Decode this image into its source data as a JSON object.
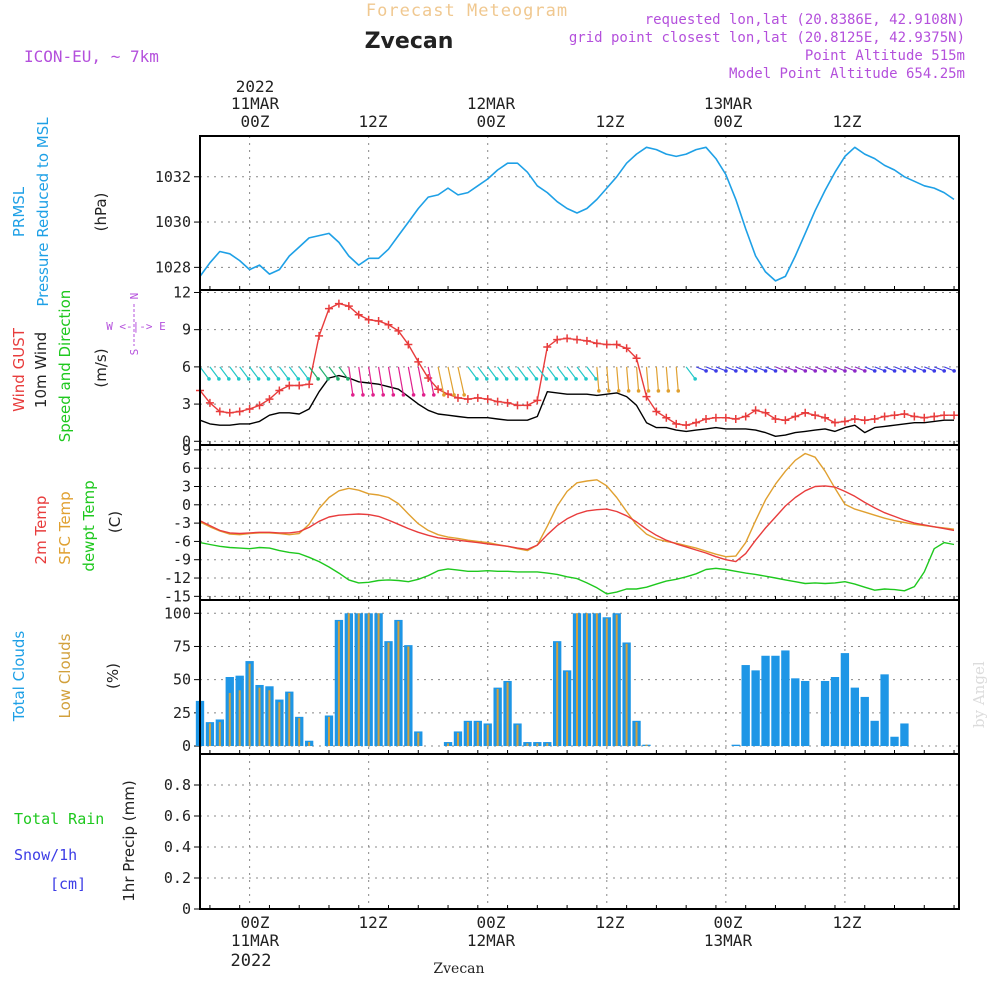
{
  "header": {
    "app_title": "Forecast Meteogram",
    "location": "Zvecan",
    "model": "ICON-EU, ~ 7km",
    "requested": "requested lon,lat (20.8386E, 42.9108N)",
    "grid_point": "grid point closest lon,lat (20.8125E, 42.9375N)",
    "point_altitude": "Point Altitude 515m",
    "model_altitude": "Model Point Altitude 654.25m",
    "watermark": "by Angel",
    "footer_location": "Zvecan"
  },
  "time_axis": {
    "top_year": "2022",
    "top_dates": [
      "11MAR",
      "12MAR",
      "13MAR"
    ],
    "hour_labels": [
      "00Z",
      "12Z",
      "00Z",
      "12Z",
      "00Z",
      "12Z"
    ],
    "bottom_dates": [
      "11MAR",
      "12MAR",
      "13MAR"
    ],
    "bottom_year": "2022"
  },
  "colors": {
    "pressure": "#1ea0e6",
    "gust": "#e83c3c",
    "wind": "#000000",
    "temp": "#e83c3c",
    "sfc": "#e0a030",
    "dewpt": "#1ec81e",
    "total_clouds": "#1e96e6",
    "low_clouds": "#d2a03c",
    "rain": "#1ec81e",
    "snow": "#3c3ce6",
    "header_purple": "#b450dc"
  },
  "chart_data": [
    {
      "type": "line",
      "panel": "pressure",
      "label_lines": [
        "PRMSL",
        "Pressure Reduced to MSL"
      ],
      "unit": "(hPa)",
      "ylim": [
        1027,
        1033.8
      ],
      "yticks": [
        1028,
        1030,
        1032
      ],
      "grid": true,
      "x_hours": [
        -5,
        -4,
        -3,
        -2,
        -1,
        0,
        1,
        2,
        3,
        4,
        5,
        6,
        7,
        8,
        9,
        10,
        11,
        12,
        13,
        14,
        15,
        16,
        17,
        18,
        19,
        20,
        21,
        22,
        23,
        24,
        25,
        26,
        27,
        28,
        29,
        30,
        31,
        32,
        33,
        34,
        35,
        36,
        37,
        38,
        39,
        40,
        41,
        42,
        43,
        44,
        45,
        46,
        47,
        48,
        49,
        50,
        51,
        52,
        53,
        54,
        55,
        56,
        57,
        58,
        59,
        60,
        61,
        62,
        63,
        64,
        65,
        66,
        67,
        68,
        69,
        70,
        71
      ],
      "series": [
        {
          "name": "PRMSL",
          "values": [
            1027.6,
            1028.2,
            1028.7,
            1028.6,
            1028.3,
            1027.9,
            1028.1,
            1027.7,
            1027.9,
            1028.5,
            1028.9,
            1029.3,
            1029.4,
            1029.5,
            1029.1,
            1028.5,
            1028.1,
            1028.4,
            1028.4,
            1028.8,
            1029.4,
            1030.0,
            1030.6,
            1031.1,
            1031.2,
            1031.5,
            1031.2,
            1031.3,
            1031.6,
            1031.9,
            1032.3,
            1032.6,
            1032.6,
            1032.2,
            1031.6,
            1031.3,
            1030.9,
            1030.6,
            1030.4,
            1030.6,
            1031.0,
            1031.5,
            1032.0,
            1032.6,
            1033.0,
            1033.3,
            1033.2,
            1033.0,
            1032.9,
            1033.0,
            1033.2,
            1033.3,
            1032.8,
            1032.1,
            1031.0,
            1029.7,
            1028.5,
            1027.8,
            1027.4,
            1027.6,
            1028.5,
            1029.5,
            1030.5,
            1031.4,
            1032.2,
            1032.9,
            1033.3,
            1033.0,
            1032.8,
            1032.5,
            1032.3,
            1032.0,
            1031.8,
            1031.6,
            1031.5,
            1031.3,
            1031.0
          ]
        }
      ]
    },
    {
      "type": "line",
      "panel": "wind",
      "label_lines": [
        "Wind GUST",
        "10m Wind",
        "Speed and Direction"
      ],
      "unit": "(m/s)",
      "compass": [
        "N",
        "W <-|-> E",
        "S"
      ],
      "ylim": [
        -0.3,
        12.2
      ],
      "yticks": [
        0,
        3,
        6,
        9,
        12
      ],
      "grid": true,
      "x_hours": [
        -5,
        -4,
        -3,
        -2,
        -1,
        0,
        1,
        2,
        3,
        4,
        5,
        6,
        7,
        8,
        9,
        10,
        11,
        12,
        13,
        14,
        15,
        16,
        17,
        18,
        19,
        20,
        21,
        22,
        23,
        24,
        25,
        26,
        27,
        28,
        29,
        30,
        31,
        32,
        33,
        34,
        35,
        36,
        37,
        38,
        39,
        40,
        41,
        42,
        43,
        44,
        45,
        46,
        47,
        48,
        49,
        50,
        51,
        52,
        53,
        54,
        55,
        56,
        57,
        58,
        59,
        60,
        61,
        62,
        63,
        64,
        65,
        66,
        67,
        68,
        69,
        70,
        71
      ],
      "series": [
        {
          "name": "Wind GUST",
          "values": [
            4.1,
            3.1,
            2.4,
            2.3,
            2.4,
            2.6,
            2.9,
            3.4,
            4.1,
            4.5,
            4.5,
            4.6,
            8.5,
            10.7,
            11.1,
            10.9,
            10.2,
            9.8,
            9.7,
            9.4,
            8.9,
            7.8,
            6.4,
            5.1,
            4.2,
            3.8,
            3.5,
            3.4,
            3.5,
            3.4,
            3.2,
            3.1,
            2.9,
            2.9,
            3.3,
            7.6,
            8.2,
            8.3,
            8.2,
            8.1,
            7.9,
            7.8,
            7.8,
            7.5,
            6.7,
            3.6,
            2.4,
            1.9,
            1.4,
            1.3,
            1.5,
            1.8,
            1.9,
            1.9,
            1.8,
            2.0,
            2.5,
            2.3,
            1.8,
            1.7,
            2.0,
            2.3,
            2.1,
            1.9,
            1.5,
            1.6,
            1.8,
            1.7,
            1.8,
            2.0,
            2.1,
            2.2,
            2.0,
            1.9,
            2.0,
            2.1,
            2.1
          ],
          "marker": "+"
        },
        {
          "name": "10m Wind",
          "values": [
            1.7,
            1.4,
            1.3,
            1.3,
            1.4,
            1.4,
            1.6,
            2.1,
            2.3,
            2.3,
            2.2,
            2.6,
            4.0,
            5.1,
            5.3,
            5.1,
            4.8,
            4.7,
            4.6,
            4.4,
            4.2,
            3.6,
            3.0,
            2.5,
            2.2,
            2.1,
            2.0,
            1.9,
            1.9,
            1.9,
            1.8,
            1.7,
            1.7,
            1.7,
            2.0,
            4.0,
            3.9,
            3.8,
            3.8,
            3.8,
            3.7,
            3.8,
            3.9,
            3.6,
            2.9,
            1.5,
            1.1,
            1.1,
            0.9,
            0.8,
            0.9,
            1.0,
            1.1,
            1.0,
            1.0,
            1.0,
            0.9,
            0.7,
            0.4,
            0.5,
            0.7,
            0.8,
            0.9,
            1.0,
            0.8,
            1.1,
            1.3,
            0.7,
            1.1,
            1.2,
            1.3,
            1.4,
            1.5,
            1.5,
            1.6,
            1.7,
            1.7
          ]
        }
      ]
    },
    {
      "type": "line",
      "panel": "temperature",
      "label_lines": [
        "2m Temp",
        "SFC Temp",
        "dewpt Temp"
      ],
      "unit": "(C)",
      "ylim": [
        -15.6,
        9.8
      ],
      "yticks": [
        -15,
        -12,
        -9,
        -6,
        -3,
        0,
        3,
        6,
        9
      ],
      "grid": true,
      "x_hours": [
        -5,
        -4,
        -3,
        -2,
        -1,
        0,
        1,
        2,
        3,
        4,
        5,
        6,
        7,
        8,
        9,
        10,
        11,
        12,
        13,
        14,
        15,
        16,
        17,
        18,
        19,
        20,
        21,
        22,
        23,
        24,
        25,
        26,
        27,
        28,
        29,
        30,
        31,
        32,
        33,
        34,
        35,
        36,
        37,
        38,
        39,
        40,
        41,
        42,
        43,
        44,
        45,
        46,
        47,
        48,
        49,
        50,
        51,
        52,
        53,
        54,
        55,
        56,
        57,
        58,
        59,
        60,
        61,
        62,
        63,
        64,
        65,
        66,
        67,
        68,
        69,
        70,
        71
      ],
      "series": [
        {
          "name": "2m Temp",
          "values": [
            -2.6,
            -3.4,
            -4.2,
            -4.6,
            -4.7,
            -4.6,
            -4.5,
            -4.5,
            -4.6,
            -4.6,
            -4.4,
            -3.7,
            -2.7,
            -2.0,
            -1.7,
            -1.6,
            -1.5,
            -1.6,
            -1.9,
            -2.5,
            -3.2,
            -3.9,
            -4.5,
            -5.0,
            -5.4,
            -5.6,
            -5.8,
            -6.0,
            -6.2,
            -6.4,
            -6.6,
            -6.8,
            -7.1,
            -7.3,
            -6.6,
            -4.9,
            -3.4,
            -2.3,
            -1.5,
            -1.0,
            -0.8,
            -0.7,
            -1.1,
            -1.8,
            -2.8,
            -4.0,
            -5.0,
            -5.8,
            -6.4,
            -6.9,
            -7.4,
            -7.9,
            -8.5,
            -9.0,
            -9.3,
            -8.0,
            -5.8,
            -3.8,
            -2.0,
            -0.2,
            1.2,
            2.3,
            3.0,
            3.1,
            2.9,
            2.2,
            1.4,
            0.4,
            -0.5,
            -1.3,
            -1.9,
            -2.5,
            -3.0,
            -3.3,
            -3.6,
            -3.9,
            -4.2
          ],
          "marker": "dot"
        },
        {
          "name": "SFC Temp",
          "values": [
            -2.8,
            -3.6,
            -4.3,
            -4.8,
            -4.9,
            -4.7,
            -4.6,
            -4.6,
            -4.7,
            -4.9,
            -4.7,
            -3.2,
            -0.6,
            1.2,
            2.3,
            2.7,
            2.4,
            1.8,
            1.6,
            1.2,
            0.2,
            -1.5,
            -3.1,
            -4.2,
            -4.9,
            -5.3,
            -5.5,
            -5.8,
            -6.0,
            -6.2,
            -6.5,
            -6.8,
            -7.2,
            -7.5,
            -6.6,
            -3.5,
            -0.2,
            2.2,
            3.6,
            3.9,
            4.1,
            3.1,
            1.2,
            -1.1,
            -3.3,
            -4.8,
            -5.6,
            -6.0,
            -6.3,
            -6.7,
            -7.1,
            -7.6,
            -8.1,
            -8.5,
            -8.4,
            -6.2,
            -2.6,
            0.8,
            3.4,
            5.5,
            7.3,
            8.4,
            7.8,
            5.5,
            2.7,
            0.1,
            -0.7,
            -1.2,
            -1.7,
            -2.2,
            -2.6,
            -2.9,
            -3.2,
            -3.4,
            -3.6,
            -3.8,
            -4.0
          ],
          "marker": "dot"
        },
        {
          "name": "dewpt Temp",
          "values": [
            -6.2,
            -6.5,
            -6.8,
            -7.0,
            -7.1,
            -7.2,
            -7.0,
            -7.1,
            -7.5,
            -7.8,
            -8.0,
            -8.6,
            -9.3,
            -10.2,
            -11.2,
            -12.3,
            -12.8,
            -12.7,
            -12.4,
            -12.3,
            -12.4,
            -12.6,
            -12.2,
            -11.6,
            -10.8,
            -10.5,
            -10.7,
            -10.9,
            -10.9,
            -10.8,
            -10.9,
            -10.9,
            -11.0,
            -11.0,
            -11.0,
            -11.2,
            -11.4,
            -11.8,
            -12.1,
            -12.8,
            -13.6,
            -14.6,
            -14.3,
            -13.8,
            -13.8,
            -13.5,
            -13.0,
            -12.5,
            -12.2,
            -11.8,
            -11.3,
            -10.6,
            -10.4,
            -10.6,
            -10.9,
            -11.2,
            -11.4,
            -11.7,
            -12.0,
            -12.3,
            -12.6,
            -12.9,
            -12.8,
            -12.9,
            -12.8,
            -12.6,
            -13.0,
            -13.5,
            -14.0,
            -13.8,
            -13.9,
            -14.1,
            -13.4,
            -11.0,
            -7.2,
            -6.2,
            -6.5
          ]
        }
      ]
    },
    {
      "type": "bar",
      "panel": "clouds",
      "label_lines": [
        "Total Clouds",
        "Low Clouds"
      ],
      "unit": "(%)",
      "ylim": [
        -6,
        110
      ],
      "yticks": [
        0,
        25,
        50,
        75,
        100
      ],
      "grid": true,
      "x_hours": [
        -5,
        -4,
        -3,
        -2,
        -1,
        0,
        1,
        2,
        3,
        4,
        5,
        6,
        7,
        8,
        9,
        10,
        11,
        12,
        13,
        14,
        15,
        16,
        17,
        18,
        19,
        20,
        21,
        22,
        23,
        24,
        25,
        26,
        27,
        28,
        29,
        30,
        31,
        32,
        33,
        34,
        35,
        36,
        37,
        38,
        39,
        40,
        41,
        42,
        43,
        44,
        45,
        46,
        47,
        48,
        49,
        50,
        51,
        52,
        53,
        54,
        55,
        56,
        57,
        58,
        59,
        60,
        61,
        62,
        63,
        64,
        65,
        66,
        67,
        68,
        69,
        70,
        71
      ],
      "series": [
        {
          "name": "Total Clouds",
          "values": [
            34,
            18,
            20,
            52,
            53,
            64,
            46,
            45,
            35,
            41,
            22,
            4,
            0,
            23,
            95,
            100,
            100,
            100,
            100,
            79,
            95,
            76,
            11,
            0,
            0,
            3,
            11,
            19,
            19,
            17,
            44,
            49,
            17,
            3,
            3,
            3,
            79,
            57,
            100,
            100,
            100,
            97,
            100,
            78,
            19,
            1,
            0,
            0,
            0,
            0,
            0,
            0,
            0,
            0,
            1,
            61,
            57,
            68,
            68,
            72,
            51,
            49,
            0,
            49,
            52,
            70,
            44,
            37,
            19,
            54,
            7,
            17,
            0,
            0,
            0,
            0,
            0
          ]
        },
        {
          "name": "Low Clouds",
          "values": [
            0,
            17,
            18,
            40,
            42,
            62,
            44,
            42,
            33,
            40,
            21,
            3,
            0,
            22,
            94,
            100,
            100,
            100,
            100,
            78,
            94,
            75,
            10,
            0,
            0,
            2,
            10,
            18,
            18,
            16,
            43,
            48,
            16,
            2,
            2,
            2,
            78,
            56,
            100,
            100,
            100,
            96,
            99,
            77,
            18,
            1,
            0,
            0,
            0,
            0,
            0,
            0,
            0,
            0,
            0,
            0,
            0,
            0,
            0,
            0,
            0,
            0,
            0,
            0,
            0,
            0,
            0,
            0,
            0,
            0,
            0,
            0,
            0,
            0,
            0,
            0,
            0
          ]
        }
      ]
    },
    {
      "type": "bar",
      "panel": "precip",
      "label_rain": "Total Rain",
      "label_snow": "Snow/1h",
      "label_snow_unit": "[cm]",
      "unit": "1hr Precip (mm)",
      "ylim": [
        0,
        1.0
      ],
      "yticks": [
        "0",
        "0.2",
        "0.4",
        "0.6",
        "0.8"
      ],
      "grid": true,
      "series": []
    }
  ]
}
